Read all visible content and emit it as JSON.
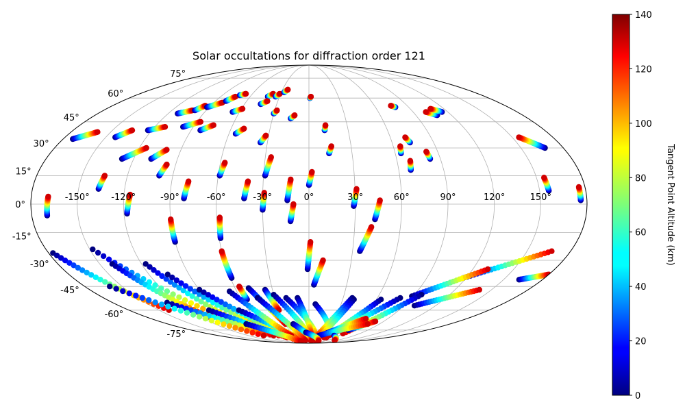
{
  "chart_data": {
    "type": "scatter",
    "projection": "mollweide",
    "title": "Solar occultations for diffraction order 121",
    "grid": true,
    "x_ticks": [
      "-150°",
      "-120°",
      "-90°",
      "-60°",
      "-30°",
      "0°",
      "30°",
      "60°",
      "90°",
      "120°",
      "150°"
    ],
    "x_tick_values": [
      -150,
      -120,
      -90,
      -60,
      -30,
      0,
      30,
      60,
      90,
      120,
      150
    ],
    "y_ticks": [
      "75°",
      "60°",
      "45°",
      "30°",
      "15°",
      "0°",
      "-15°",
      "-30°",
      "-45°",
      "-60°",
      "-75°"
    ],
    "y_tick_values": [
      75,
      60,
      45,
      30,
      15,
      0,
      -15,
      -30,
      -45,
      -60,
      -75
    ],
    "xlim": [
      -180,
      180
    ],
    "ylim": [
      -90,
      90
    ],
    "colorbar": {
      "label": "Tangent Point Altitude (km)",
      "ticks": [
        "0",
        "20",
        "40",
        "60",
        "80",
        "100",
        "120",
        "140"
      ],
      "tick_values": [
        0,
        20,
        40,
        60,
        80,
        100,
        120,
        140
      ],
      "range": [
        0,
        140
      ],
      "colormap": "jet"
    },
    "tracks": [
      {
        "start": [
          -170,
          -6
        ],
        "end": [
          -169,
          4
        ]
      },
      {
        "start": [
          -137,
          8
        ],
        "end": [
          -135,
          15
        ]
      },
      {
        "start": [
          -118,
          -5
        ],
        "end": [
          -116,
          5
        ]
      },
      {
        "start": [
          -99,
          15
        ],
        "end": [
          -96,
          21
        ]
      },
      {
        "start": [
          -81,
          3
        ],
        "end": [
          -79,
          12
        ]
      },
      {
        "start": [
          -59,
          15
        ],
        "end": [
          -57,
          22
        ]
      },
      {
        "start": [
          -42,
          3
        ],
        "end": [
          -40,
          12
        ]
      },
      {
        "start": [
          -29,
          15
        ],
        "end": [
          -26,
          25
        ]
      },
      {
        "start": [
          -14,
          2
        ],
        "end": [
          -12,
          13
        ]
      },
      {
        "start": [
          0,
          10
        ],
        "end": [
          2,
          17
        ]
      },
      {
        "start": [
          29,
          -1
        ],
        "end": [
          31,
          8
        ]
      },
      {
        "start": [
          43,
          -8
        ],
        "end": [
          46,
          2
        ]
      },
      {
        "start": [
          -12,
          -9
        ],
        "end": [
          -10,
          0
        ]
      },
      {
        "start": [
          -30,
          -3
        ],
        "end": [
          -29,
          6
        ]
      },
      {
        "start": [
          -173,
          35
        ],
        "end": [
          -160,
          39
        ]
      },
      {
        "start": [
          -143,
          36
        ],
        "end": [
          -135,
          40
        ]
      },
      {
        "start": [
          -123,
          40
        ],
        "end": [
          -112,
          42
        ]
      },
      {
        "start": [
          -112,
          50
        ],
        "end": [
          -102,
          52
        ]
      },
      {
        "start": [
          -100,
          52
        ],
        "end": [
          -95,
          55
        ]
      },
      {
        "start": [
          -92,
          54
        ],
        "end": [
          -82,
          57
        ]
      },
      {
        "start": [
          -80,
          58
        ],
        "end": [
          -75,
          61
        ]
      },
      {
        "start": [
          -72,
          62
        ],
        "end": [
          -67,
          63
        ]
      },
      {
        "start": [
          -66,
          51
        ],
        "end": [
          -59,
          53
        ]
      },
      {
        "start": [
          -98,
          42
        ],
        "end": [
          -87,
          45
        ]
      },
      {
        "start": [
          -83,
          40
        ],
        "end": [
          -75,
          43
        ]
      },
      {
        "start": [
          -55,
          38
        ],
        "end": [
          -50,
          41
        ]
      },
      {
        "start": [
          -42,
          61
        ],
        "end": [
          -38,
          63
        ]
      },
      {
        "start": [
          -34,
          61
        ],
        "end": [
          -31,
          63
        ]
      },
      {
        "start": [
          -27,
          64
        ],
        "end": [
          -24,
          66
        ]
      },
      {
        "start": [
          -30,
          50
        ],
        "end": [
          -28,
          52
        ]
      },
      {
        "start": [
          -45,
          56
        ],
        "end": [
          -40,
          58
        ]
      },
      {
        "start": [
          -35,
          33
        ],
        "end": [
          -32,
          37
        ]
      },
      {
        "start": [
          -15,
          47
        ],
        "end": [
          -12,
          49
        ]
      },
      {
        "start": [
          1,
          60
        ],
        "end": [
          2,
          61
        ]
      },
      {
        "start": [
          12,
          40
        ],
        "end": [
          13,
          43
        ]
      },
      {
        "start": [
          14,
          27
        ],
        "end": [
          16,
          31
        ]
      },
      {
        "start": [
          64,
          27
        ],
        "end": [
          65,
          31
        ]
      },
      {
        "start": [
          68,
          18
        ],
        "end": [
          69,
          23
        ]
      },
      {
        "start": [
          73,
          33
        ],
        "end": [
          71,
          36
        ]
      },
      {
        "start": [
          83,
          24
        ],
        "end": [
          82,
          28
        ]
      },
      {
        "start": [
          78,
          54
        ],
        "end": [
          75,
          55
        ]
      },
      {
        "start": [
          108,
          49
        ],
        "end": [
          101,
          51
        ]
      },
      {
        "start": [
          115,
          51
        ],
        "end": [
          108,
          53
        ]
      },
      {
        "start": [
          167,
          30
        ],
        "end": [
          155,
          36
        ]
      },
      {
        "start": [
          156,
          7
        ],
        "end": [
          155,
          14
        ]
      },
      {
        "start": [
          176,
          2
        ],
        "end": [
          176,
          9
        ]
      },
      {
        "start": [
          -108,
          24
        ],
        "end": [
          -100,
          29
        ]
      },
      {
        "start": [
          -128,
          24
        ],
        "end": [
          -115,
          30
        ]
      },
      {
        "start": [
          -90,
          -20
        ],
        "end": [
          -90,
          -8
        ]
      },
      {
        "start": [
          -59,
          -18
        ],
        "end": [
          -58,
          -7
        ]
      },
      {
        "start": [
          -59,
          -40
        ],
        "end": [
          -60,
          -25
        ]
      },
      {
        "start": [
          -55,
          -53
        ],
        "end": [
          -56,
          -45
        ]
      },
      {
        "start": [
          -1,
          -35
        ],
        "end": [
          1,
          -20
        ]
      },
      {
        "start": [
          4,
          -44
        ],
        "end": [
          10,
          -30
        ]
      },
      {
        "start": [
          35,
          -25
        ],
        "end": [
          41,
          -12
        ]
      },
      {
        "start": [
          118,
          -40
        ],
        "end": [
          167,
          -25
        ]
      },
      {
        "start": [
          162,
          -41
        ],
        "end": [
          180,
          -38
        ]
      },
      {
        "start": [
          89,
          -51
        ],
        "end": [
          131,
          -35
        ]
      },
      {
        "start": [
          100,
          -57
        ],
        "end": [
          140,
          -47
        ]
      },
      {
        "start": [
          -177,
          -26
        ],
        "end": [
          -140,
          -60
        ]
      },
      {
        "start": [
          -148,
          -24
        ],
        "end": [
          -90,
          -70
        ]
      },
      {
        "start": [
          -141,
          -32
        ],
        "end": [
          -110,
          -65
        ]
      },
      {
        "start": [
          -117,
          -32
        ],
        "end": [
          -80,
          -75
        ]
      },
      {
        "start": [
          -106,
          -38
        ],
        "end": [
          -60,
          -80
        ]
      },
      {
        "start": [
          -90,
          -47
        ],
        "end": [
          -40,
          -85
        ]
      },
      {
        "start": [
          -70,
          -60
        ],
        "end": [
          -20,
          -85
        ]
      },
      {
        "start": [
          -66,
          -48
        ],
        "end": [
          -35,
          -80
        ]
      },
      {
        "start": [
          -49,
          -46
        ],
        "end": [
          -30,
          -70
        ]
      },
      {
        "start": [
          -36,
          -47
        ],
        "end": [
          -30,
          -60
        ]
      },
      {
        "start": [
          -20,
          -52
        ],
        "end": [
          20,
          -85
        ]
      },
      {
        "start": [
          -10,
          -52
        ],
        "end": [
          5,
          -80
        ]
      },
      {
        "start": [
          6,
          -56
        ],
        "end": [
          40,
          -82
        ]
      },
      {
        "start": [
          38,
          -52
        ],
        "end": [
          15,
          -82
        ]
      },
      {
        "start": [
          40,
          -53
        ],
        "end": [
          20,
          -85
        ]
      },
      {
        "start": [
          64,
          -53
        ],
        "end": [
          35,
          -82
        ]
      },
      {
        "start": [
          80,
          -52
        ],
        "end": [
          40,
          -80
        ]
      },
      {
        "start": [
          96,
          -50
        ],
        "end": [
          60,
          -78
        ]
      },
      {
        "start": [
          -30,
          -50
        ],
        "end": [
          5,
          -85
        ]
      },
      {
        "start": [
          -45,
          -52
        ],
        "end": [
          -10,
          -85
        ]
      },
      {
        "start": [
          -20,
          -70
        ],
        "end": [
          10,
          -85
        ]
      },
      {
        "start": [
          60,
          -75
        ],
        "end": [
          80,
          -68
        ]
      },
      {
        "start": [
          30,
          -78
        ],
        "end": [
          65,
          -66
        ]
      },
      {
        "start": [
          20,
          -80
        ],
        "end": [
          75,
          -70
        ]
      },
      {
        "start": [
          -100,
          -60
        ],
        "end": [
          -50,
          -82
        ]
      },
      {
        "start": [
          -130,
          -55
        ],
        "end": [
          -70,
          -80
        ]
      },
      {
        "start": [
          -160,
          -45
        ],
        "end": [
          -90,
          -80
        ]
      },
      {
        "start": [
          -80,
          -70
        ],
        "end": [
          -30,
          -86
        ]
      },
      {
        "start": [
          -5,
          -77
        ],
        "end": [
          35,
          -86
        ]
      },
      {
        "start": [
          50,
          -80
        ],
        "end": [
          80,
          -85
        ]
      }
    ]
  }
}
